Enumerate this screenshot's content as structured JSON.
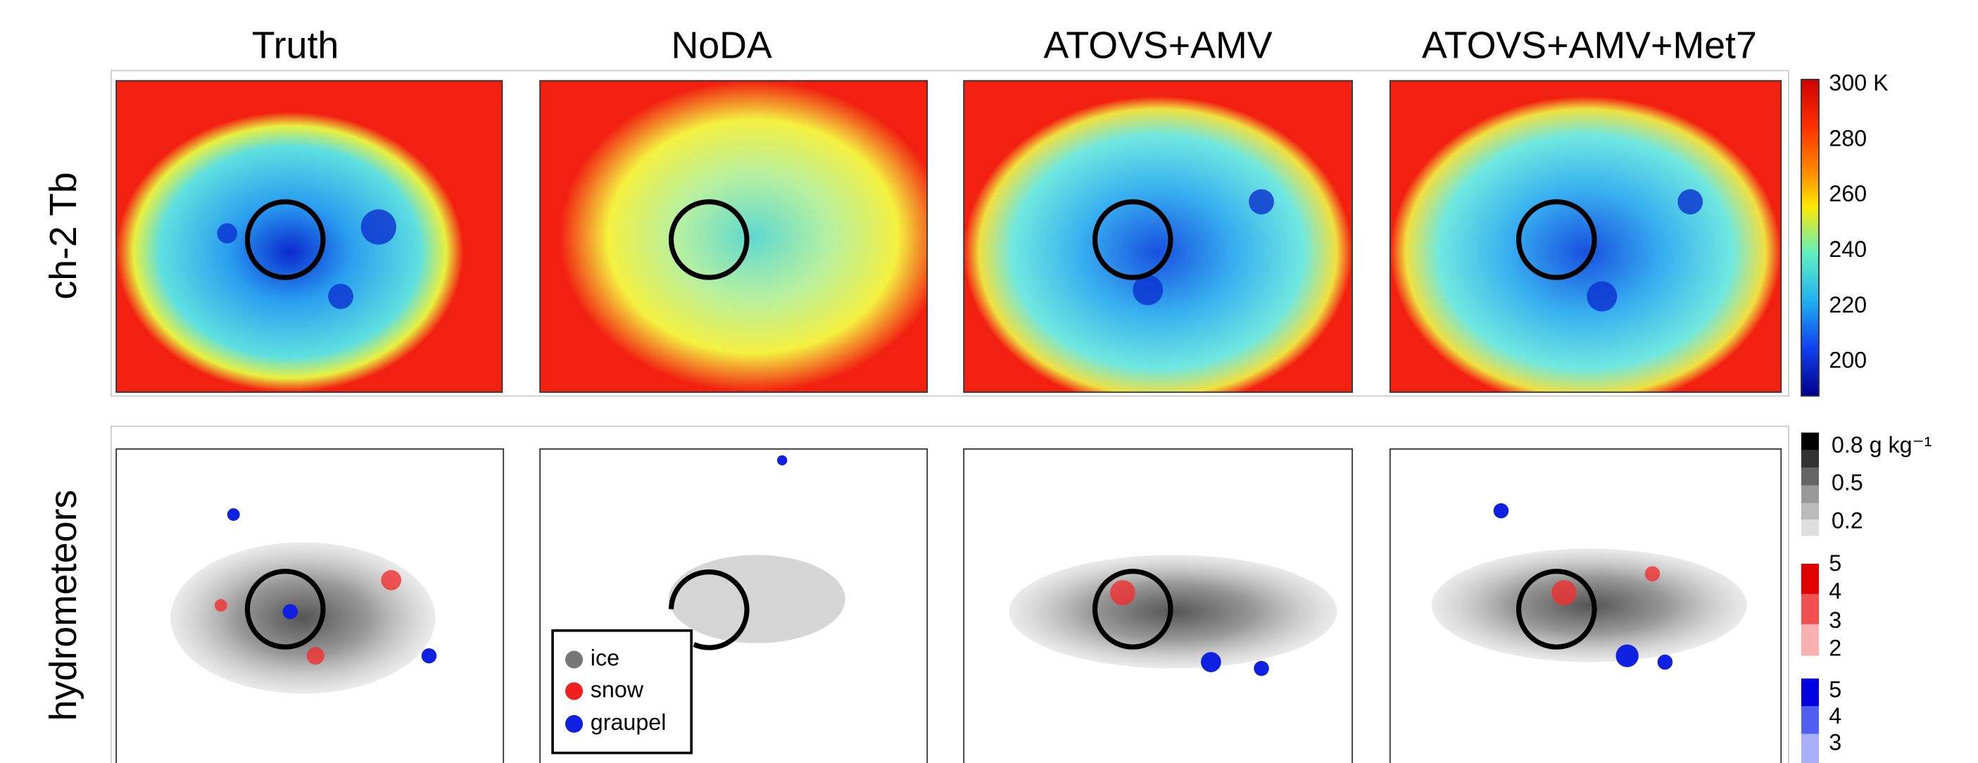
{
  "columns": [
    "Truth",
    "NoDA",
    "ATOVS+AMV",
    "ATOVS+AMV+Met7"
  ],
  "rows": [
    "ch-2 Tb",
    "hydrometeors"
  ],
  "colorbar_tb": {
    "ticks": [
      "300 K",
      "280",
      "260",
      "240",
      "220",
      "200"
    ]
  },
  "colorbar_hydrometeors": {
    "ice_ticks": [
      "0.8 g kg⁻¹",
      "0.5",
      "0.2"
    ],
    "snow_ticks": [
      "5",
      "4",
      "3",
      "2"
    ],
    "graupel_ticks": [
      "5",
      "4",
      "3"
    ]
  },
  "legend": [
    "ice",
    "snow",
    "graupel"
  ]
}
